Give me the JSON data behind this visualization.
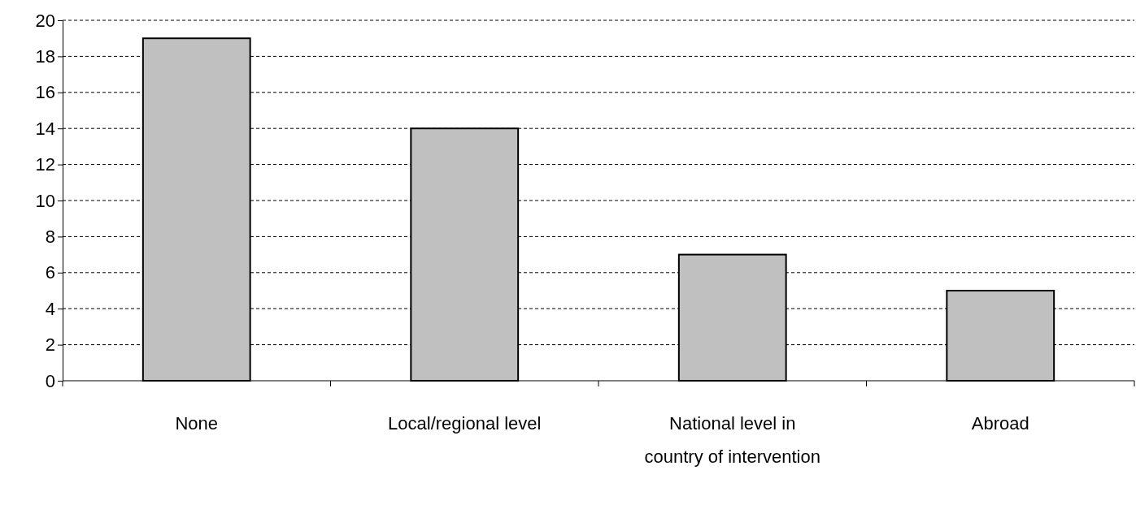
{
  "chart_data": {
    "type": "bar",
    "categories": [
      "None",
      "Local/regional level",
      "National level in country of intervention",
      "Abroad"
    ],
    "values": [
      19,
      14,
      7,
      5
    ],
    "color": "#c0c0c0",
    "ylim": [
      0,
      20
    ],
    "yticks": [
      0,
      2,
      4,
      6,
      8,
      10,
      12,
      14,
      16,
      18,
      20
    ],
    "grid": "y"
  }
}
